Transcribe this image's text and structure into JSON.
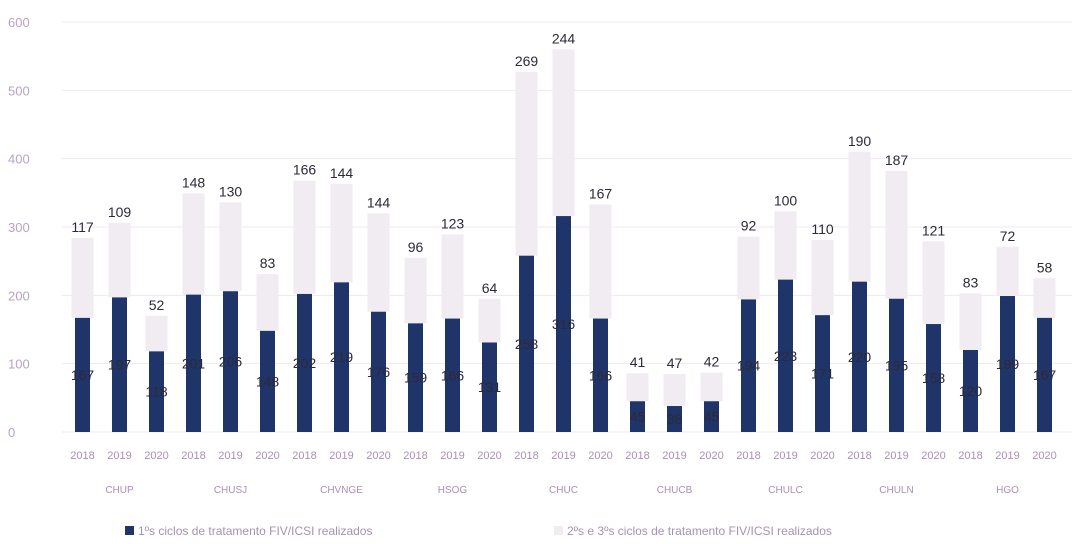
{
  "chart_data": {
    "type": "bar",
    "stacked": true,
    "groups": [
      "CHUP",
      "CHUSJ",
      "CHVNGE",
      "HSOG",
      "CHUC",
      "CHUCB",
      "CHULC",
      "CHULN",
      "HGO"
    ],
    "years": [
      "2018",
      "2019",
      "2020"
    ],
    "categories": [
      "2018",
      "2019",
      "2020",
      "2018",
      "2019",
      "2020",
      "2018",
      "2019",
      "2020",
      "2018",
      "2019",
      "2020",
      "2018",
      "2019",
      "2020",
      "2018",
      "2019",
      "2020",
      "2018",
      "2019",
      "2020",
      "2018",
      "2019",
      "2020",
      "2018",
      "2019",
      "2020"
    ],
    "series": [
      {
        "name": "1ºs ciclos de tratamento FIV/ICSI realizados",
        "color": "#1f3468",
        "values": [
          167,
          197,
          118,
          201,
          206,
          148,
          202,
          219,
          176,
          159,
          166,
          131,
          258,
          316,
          166,
          45,
          38,
          45,
          194,
          223,
          171,
          220,
          195,
          158,
          120,
          199,
          167
        ],
        "labels": [
          "167",
          "197",
          "118",
          "201",
          "206",
          "148",
          "202",
          "219",
          "176",
          "159",
          "166",
          "131",
          "258",
          "316",
          "166",
          "45",
          "38",
          "45",
          "194",
          "223",
          "171",
          "220",
          "195",
          "158",
          "120",
          "199",
          "167"
        ]
      },
      {
        "name": "2ºs e 3ºs ciclos de tratamento FIV/ICSI realizados",
        "color": "#f1ebf2",
        "values": [
          117,
          109,
          52,
          148,
          130,
          83,
          166,
          144,
          144,
          96,
          123,
          64,
          269,
          244,
          167,
          41,
          47,
          42,
          92,
          100,
          110,
          190,
          187,
          121,
          83,
          72,
          58
        ],
        "labels": [
          "117",
          "109",
          "52",
          "148",
          "130",
          "83",
          "166",
          "144",
          "144",
          "96",
          "123",
          "64",
          "269",
          "244",
          "167",
          "41",
          "47",
          "42",
          "92",
          "100",
          "110",
          "190",
          "187",
          "121",
          "83",
          "72",
          "58"
        ]
      }
    ],
    "yticks": [
      "0",
      "100",
      "200",
      "300",
      "400",
      "500",
      "600"
    ],
    "ylim": [
      0,
      600
    ],
    "grid": true,
    "legend": "bottom"
  }
}
